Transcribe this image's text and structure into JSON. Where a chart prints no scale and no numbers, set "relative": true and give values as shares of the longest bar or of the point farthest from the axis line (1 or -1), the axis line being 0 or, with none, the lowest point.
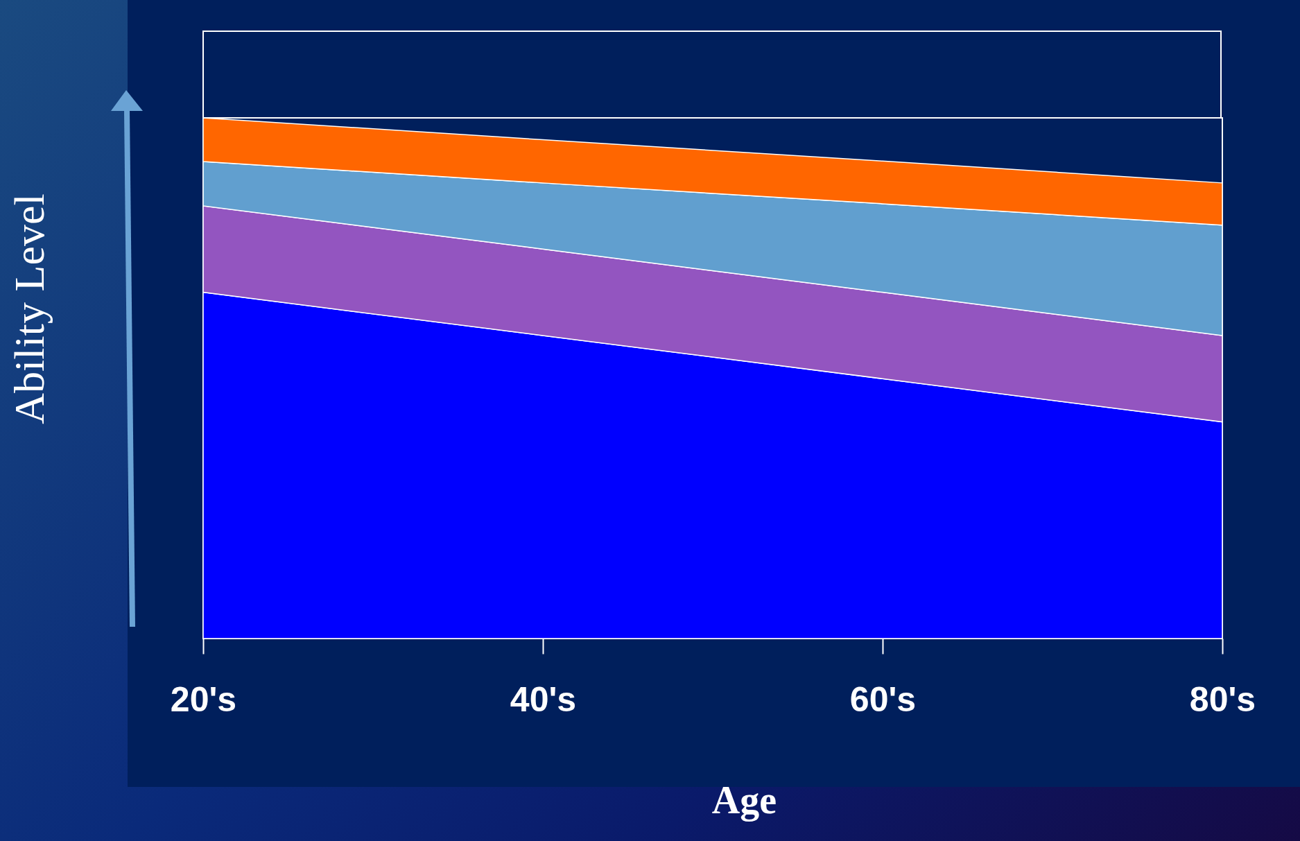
{
  "chart_data": {
    "type": "area",
    "xlabel": "Age",
    "ylabel": "Ability Level",
    "relative": true,
    "stacked": true,
    "legend": false,
    "grid": false,
    "categories": [
      "20's",
      "40's",
      "60's",
      "80's"
    ],
    "series": [
      {
        "color": "#0000ff",
        "values": [
          0.665,
          0.582,
          0.499,
          0.416
        ]
      },
      {
        "color": "#9355c0",
        "values": [
          0.166,
          0.166,
          0.166,
          0.166
        ]
      },
      {
        "color": "#619fcf",
        "values": [
          0.085,
          0.127,
          0.17,
          0.212
        ]
      },
      {
        "color": "#ff6600",
        "values": [
          0.084,
          0.083,
          0.082,
          0.081
        ]
      }
    ]
  }
}
